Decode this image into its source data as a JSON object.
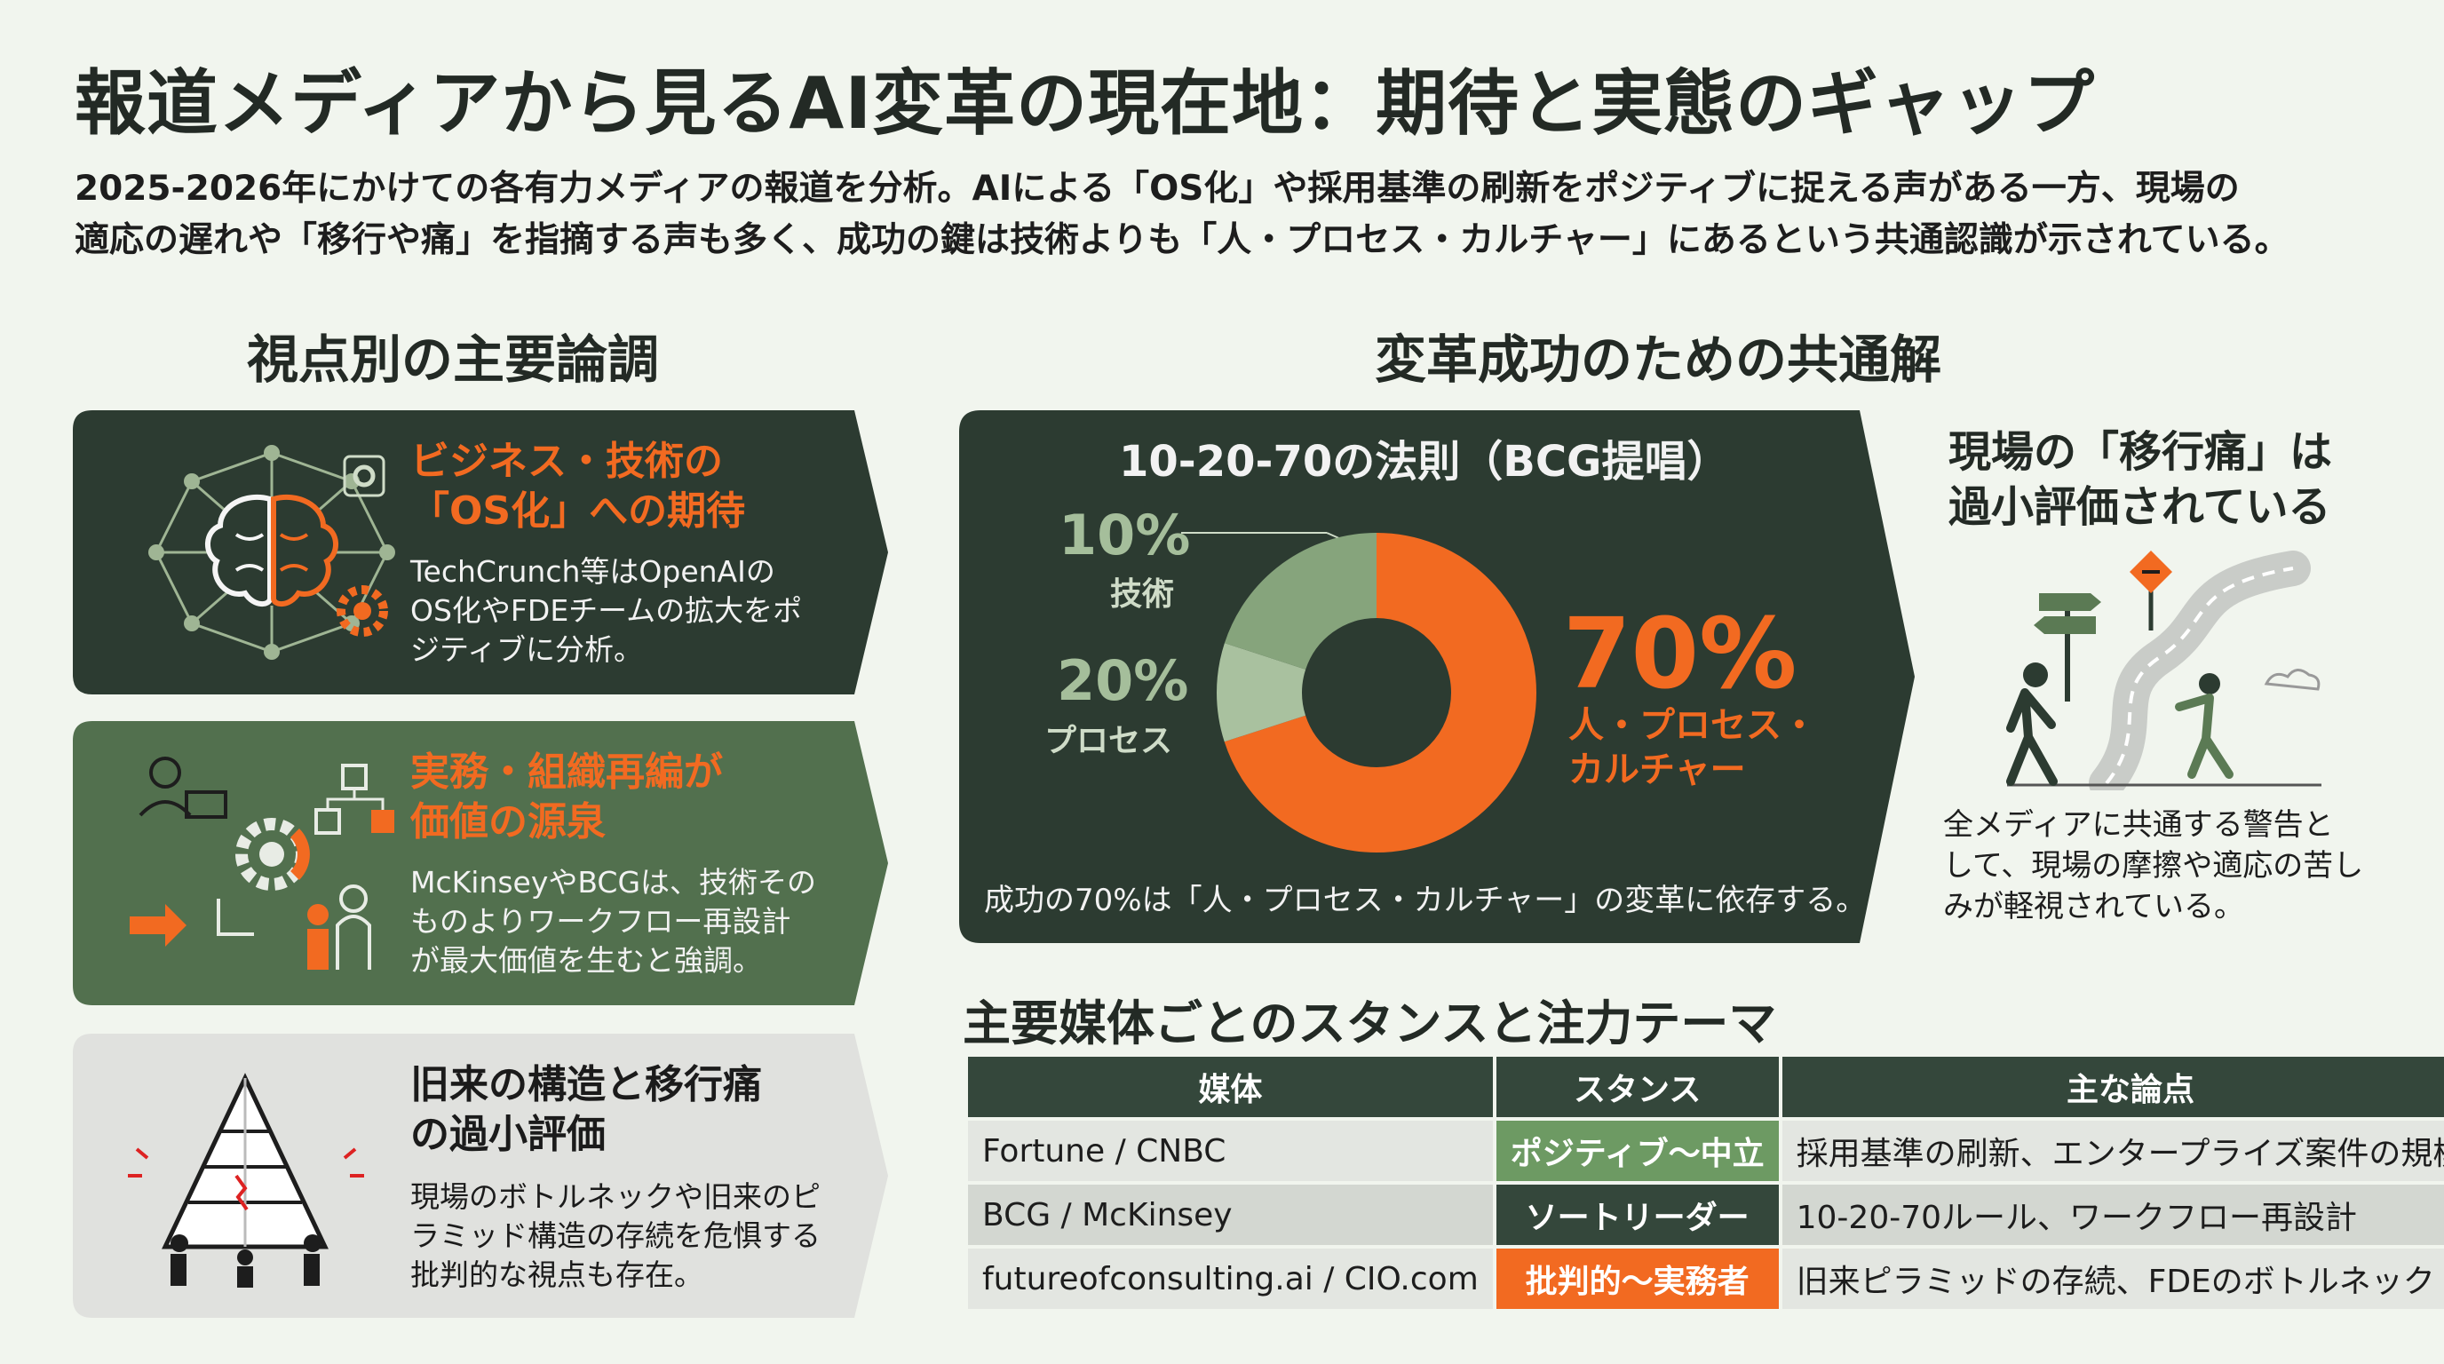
{
  "title": "報道メディアから見るAI変革の現在地：期待と実態のギャップ",
  "intro": {
    "line1": "2025-2026年にかけての各有力メディアの報道を分析。AIによる「OS化」や採用基準の刷新をポジティブに捉える声がある一方、現場の",
    "line2": "適応の遅れや「移行や痛」を指摘する声も多く、成功の鍵は技術よりも「人・プロセス・カルチャー」にあるという共通認識が示されている。"
  },
  "left": {
    "heading": "視点別の主要論調",
    "cards": [
      {
        "title1": "ビジネス・技術の",
        "title2": "「OS化」への期待",
        "body1": "TechCrunch等はOpenAIの",
        "body2": "OS化やFDEチームの拡大をポ",
        "body3": "ジティブに分析。",
        "icon": "brain-network-icon"
      },
      {
        "title1": "実務・組織再編が",
        "title2": "価値の源泉",
        "body1": "McKinseyやBCGは、技術その",
        "body2": "ものよりワークフロー再設計",
        "body3": "が最大価値を生むと強調。",
        "icon": "workflow-gear-icon"
      },
      {
        "title1": "旧来の構造と移行痛",
        "title2": "の過小評価",
        "body1": "現場のボトルネックや旧来のピ",
        "body2": "ラミッド構造の存続を危惧する",
        "body3": "批判的な視点も存在。",
        "icon": "pyramid-people-icon"
      }
    ]
  },
  "right": {
    "heading": "変革成功のための共通解",
    "rule": {
      "title": "10-20-70の法則（BCG提唱）",
      "segments": [
        {
          "pct": "10%",
          "label": "技術",
          "value": 10,
          "color": "#a9c19f"
        },
        {
          "pct": "20%",
          "label": "プロセス",
          "value": 20,
          "color": "#86a47c"
        },
        {
          "pct": "70%",
          "label1": "人・プロセス・",
          "label2": "カルチャー",
          "value": 70,
          "color": "#f26a21"
        }
      ],
      "note": "成功の70%は「人・プロセス・カルチャー」の変革に依存する。"
    },
    "pain": {
      "title1": "現場の「移行痛」は",
      "title2": "過小評価されている",
      "text1": "全メディアに共通する警告と",
      "text2": "して、現場の摩擦や適応の苦し",
      "text3": "みが軽視されている。",
      "icon": "winding-road-icon"
    }
  },
  "table": {
    "title": "主要媒体ごとのスタンスと注力テーマ",
    "headers": [
      "媒体",
      "スタンス",
      "主な論点"
    ],
    "rows": [
      {
        "media": "Fortune / CNBC",
        "stance": "ポジティブ〜中立",
        "stance_color": "#6d9a63",
        "point": "採用基準の刷新、エンタープライズ案件の規模"
      },
      {
        "media": "BCG / McKinsey",
        "stance": "ソートリーダー",
        "stance_color": "#34473b",
        "point": "10-20-70ルール、ワークフロー再設計"
      },
      {
        "media": "futureofconsulting.ai / CIO.com",
        "stance": "批判的〜実務者",
        "stance_color": "#f26a21",
        "point": "旧来ピラミッドの存続、FDEのボトルネック"
      }
    ]
  },
  "colors": {
    "dark_green": "#2c3b31",
    "mid_green": "#52704e",
    "light_gray": "#e0e1de",
    "accent_orange": "#f26a21"
  }
}
